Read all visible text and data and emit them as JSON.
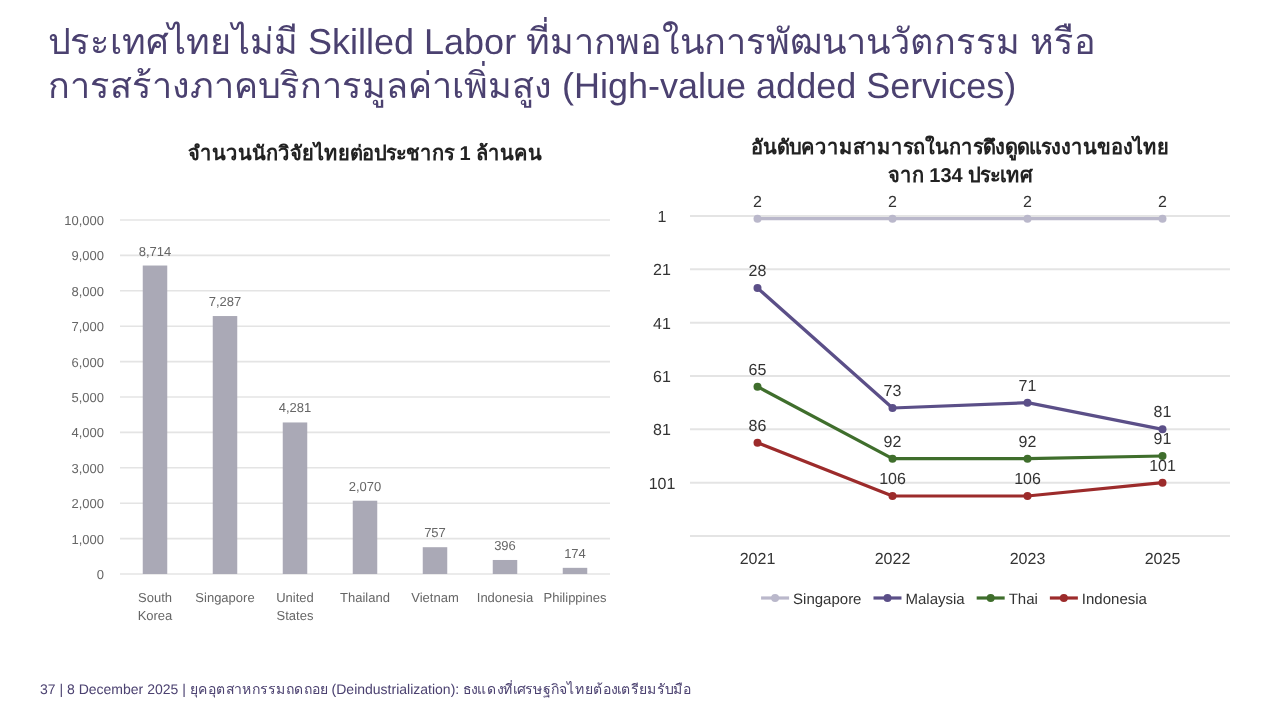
{
  "chart_data": [
    {
      "type": "bar",
      "title": "ประเทศไทยไม่มี Skilled Labor ที่มากพอในการพัฒนานวัตกรรม หรือ การสร้างภาคบริการมูลค่าเพิ่มสูง (High-value added Services)",
      "subtitle": "จำนวนนักวิจัยไทยต่อประชากร 1 ล้านคน",
      "categories": [
        "South Korea",
        "Singapore",
        "United States",
        "Thailand",
        "Vietnam",
        "Indonesia",
        "Philippines"
      ],
      "values": [
        8714,
        7287,
        4281,
        2070,
        757,
        396,
        174
      ],
      "color": "#aaa9b6",
      "value_labels": [
        "8,714",
        "7,287",
        "4,281",
        "2,070",
        "757",
        "396",
        "174"
      ],
      "ylim": [
        0,
        10000
      ],
      "yticks": [
        {
          "value": 0,
          "label": "0"
        },
        {
          "value": 1000,
          "label": "1,000"
        },
        {
          "value": 2000,
          "label": "2,000"
        },
        {
          "value": 3000,
          "label": "3,000"
        },
        {
          "value": 4000,
          "label": "4,000"
        },
        {
          "value": 5000,
          "label": "5,000"
        },
        {
          "value": 6000,
          "label": "6,000"
        },
        {
          "value": 7000,
          "label": "7,000"
        },
        {
          "value": 8000,
          "label": "8,000"
        },
        {
          "value": 9000,
          "label": "9,000"
        },
        {
          "value": 10000,
          "label": "10,000"
        }
      ],
      "grid": "y"
    },
    {
      "type": "line",
      "title": "อันดับความสามารถในการดึงดูดแรงงานของไทย จาก 134 ประเทศ",
      "categories": [
        "2021",
        "2022",
        "2023",
        "2025"
      ],
      "series": [
        {
          "name": "Singapore",
          "color": "#bab8cb",
          "values": [
            2,
            2,
            2,
            2
          ]
        },
        {
          "name": "Malaysia",
          "color": "#5b4f88",
          "values": [
            28,
            73,
            71,
            81
          ]
        },
        {
          "name": "Thai",
          "color": "#3f6e2c",
          "values": [
            65,
            92,
            92,
            91
          ]
        },
        {
          "name": "Indonesia",
          "color": "#9c2b2b",
          "values": [
            86,
            106,
            106,
            101
          ]
        }
      ],
      "ylim": [
        121,
        1
      ],
      "yticks": [
        1,
        21,
        41,
        61,
        81,
        101
      ],
      "data_labels": true,
      "grid": "y",
      "legend": "bottom",
      "marker": "circle",
      "line_style": "solid",
      "annotations": [
        "37 | 8 December 2025 | ยุคอุตสาหกรรมถดถอย (Deindustrialization): ธงแดงที่เศรษฐกิจไทยต้องเตรียมรับมือ"
      ]
    }
  ]
}
